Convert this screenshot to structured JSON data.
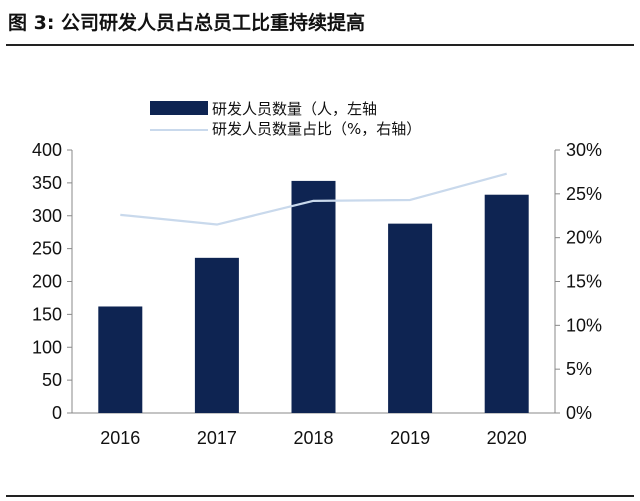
{
  "title": "图 3:  公司研发人员占总员工比重持续提高",
  "colors": {
    "bar": "#0e2452",
    "line": "#c9d9ec",
    "axis": "#888888",
    "rule": "#222222"
  },
  "chart_data": {
    "type": "bar",
    "categories": [
      "2016",
      "2017",
      "2018",
      "2019",
      "2020"
    ],
    "series": [
      {
        "name": "研发人员数量（人，左轴",
        "chart": "bar",
        "axis": "left",
        "values": [
          162,
          236,
          353,
          288,
          332
        ]
      },
      {
        "name": "研发人员数量占比（%，右轴）",
        "chart": "line",
        "axis": "right",
        "values": [
          22.6,
          21.5,
          24.2,
          24.3,
          27.3
        ]
      }
    ],
    "y_left": {
      "ylim": [
        0,
        400
      ],
      "ticks": [
        "0",
        "50",
        "100",
        "150",
        "200",
        "250",
        "300",
        "350",
        "400"
      ]
    },
    "y_right": {
      "ylim": [
        0,
        30
      ],
      "ticks": [
        "0%",
        "5%",
        "10%",
        "15%",
        "20%",
        "25%",
        "30%"
      ]
    },
    "legend_position": "top-center",
    "grid": false
  }
}
